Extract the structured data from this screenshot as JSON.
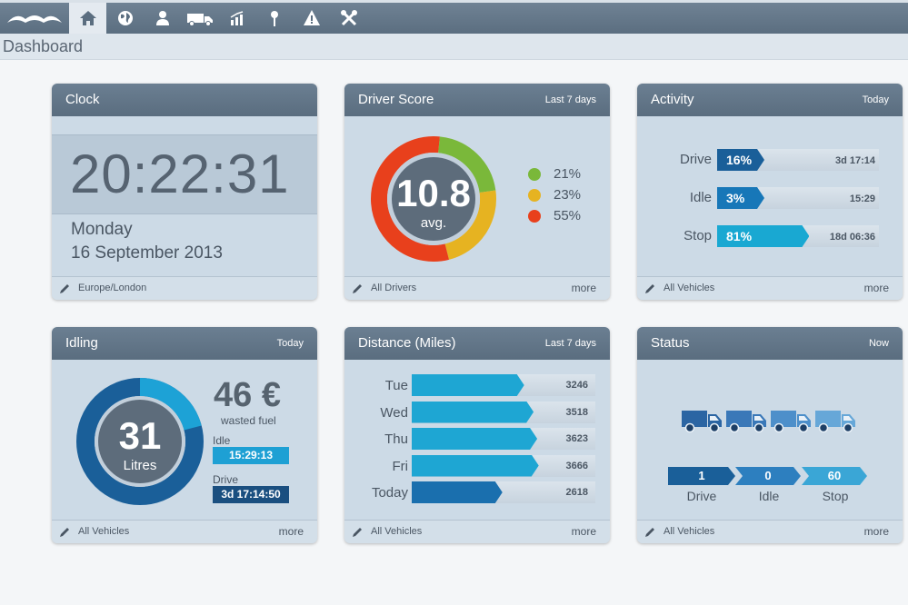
{
  "nav": {
    "items": [
      {
        "name": "home",
        "icon": "home-icon",
        "active": true
      },
      {
        "name": "map",
        "icon": "globe-icon",
        "active": false
      },
      {
        "name": "drivers",
        "icon": "person-icon",
        "active": false
      },
      {
        "name": "vehicles",
        "icon": "van-icon",
        "active": false
      },
      {
        "name": "reports",
        "icon": "chart-icon",
        "active": false
      },
      {
        "name": "locations",
        "icon": "pin-icon",
        "active": false
      },
      {
        "name": "alerts",
        "icon": "warning-icon",
        "active": false
      },
      {
        "name": "tools",
        "icon": "tools-icon",
        "active": false
      }
    ]
  },
  "page": {
    "title": "Dashboard"
  },
  "clock": {
    "title": "Clock",
    "time": "20:22:31",
    "day": "Monday",
    "date": "16 September 2013",
    "footer": "Europe/London"
  },
  "driver_score": {
    "title": "Driver Score",
    "period": "Last 7 days",
    "score": "10.8",
    "score_label": "avg.",
    "legend": [
      {
        "value": "21%",
        "fraction": 0.21,
        "color": "#7ab83a"
      },
      {
        "value": "23%",
        "fraction": 0.23,
        "color": "#e6b321"
      },
      {
        "value": "55%",
        "fraction": 0.55,
        "color": "#e8401c"
      }
    ],
    "footer": "All Drivers",
    "more": "more"
  },
  "activity": {
    "title": "Activity",
    "period": "Today",
    "rows": [
      {
        "label": "Drive",
        "percent": "16%",
        "fraction": 0.16,
        "duration": "3d 17:14",
        "color": "#1a5f99"
      },
      {
        "label": "Idle",
        "percent": "3%",
        "fraction": 0.03,
        "duration": "15:29",
        "color": "#1777b8"
      },
      {
        "label": "Stop",
        "percent": "81%",
        "fraction": 0.81,
        "duration": "18d 06:36",
        "color": "#19a8d2"
      }
    ],
    "footer": "All Vehicles",
    "more": "more"
  },
  "idling": {
    "title": "Idling",
    "period": "Today",
    "litres": "31",
    "litres_label": "Litres",
    "amount": "46 €",
    "amount_label": "wasted fuel",
    "idle_label": "Idle",
    "idle_value": "15:29:13",
    "drive_label": "Drive",
    "drive_value": "3d 17:14:50",
    "footer": "All Vehicles",
    "more": "more"
  },
  "distance": {
    "title": "Distance (Miles)",
    "period": "Last 7 days",
    "rows": [
      {
        "day": "Tue",
        "value": "3246",
        "miles": 3246
      },
      {
        "day": "Wed",
        "value": "3518",
        "miles": 3518
      },
      {
        "day": "Thu",
        "value": "3623",
        "miles": 3623
      },
      {
        "day": "Fri",
        "value": "3666",
        "miles": 3666
      },
      {
        "day": "Today",
        "value": "2618",
        "miles": 2618
      }
    ],
    "footer": "All Vehicles",
    "more": "more"
  },
  "status": {
    "title": "Status",
    "period": "Now",
    "items": [
      {
        "label": "Drive",
        "count": "1",
        "color": "#1a5f99"
      },
      {
        "label": "Idle",
        "count": "0",
        "color": "#2d7fbf"
      },
      {
        "label": "Stop",
        "count": "60",
        "color": "#3aa6d6"
      }
    ],
    "truck_colors": [
      "#2b65a3",
      "#3a78b8",
      "#4d8fca",
      "#66a7d8"
    ],
    "footer": "All Vehicles",
    "more": "more"
  }
}
